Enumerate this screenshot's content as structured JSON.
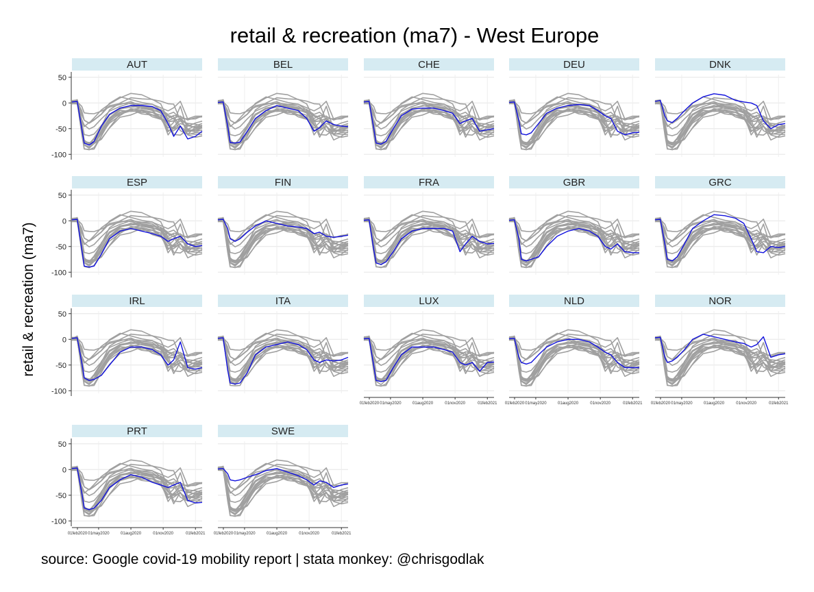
{
  "chart_data": {
    "type": "line",
    "title": "retail & recreation (ma7) - West Europe",
    "ylabel": "retail & recreation (ma7)",
    "xlabel": "",
    "source": "source: Google covid-19 mobility report | stata monkey: @chrisgodlak",
    "ylim": [
      -105,
      55
    ],
    "yticks": [
      50,
      0,
      -50,
      -100
    ],
    "x_range": [
      "2020-02-15",
      "2021-02-20"
    ],
    "x_ticks": [
      {
        "date": "2020-02-01",
        "label": "01feb2020"
      },
      {
        "date": "2020-05-01",
        "label": "01may2020"
      },
      {
        "date": "2020-08-01",
        "label": "01aug2020"
      },
      {
        "date": "2020-11-01",
        "label": "01nov2020"
      },
      {
        "date": "2021-02-01",
        "label": "01feb2021"
      }
    ],
    "background_series_color": "#a0a0a0",
    "highlight_color": "#1010dd",
    "grid": true,
    "x_dates": [
      "2020-02-15",
      "2020-03-01",
      "2020-03-14",
      "2020-03-21",
      "2020-04-04",
      "2020-04-18",
      "2020-05-09",
      "2020-06-01",
      "2020-07-01",
      "2020-08-01",
      "2020-09-01",
      "2020-10-01",
      "2020-10-25",
      "2020-11-15",
      "2020-12-01",
      "2020-12-20",
      "2021-01-10",
      "2021-02-01",
      "2021-02-20"
    ],
    "series": [
      {
        "name": "AUT",
        "values": [
          2,
          3,
          -50,
          -78,
          -82,
          -75,
          -45,
          -22,
          -10,
          -5,
          -5,
          -7,
          -15,
          -40,
          -65,
          -45,
          -70,
          -65,
          -55
        ]
      },
      {
        "name": "BEL",
        "values": [
          1,
          2,
          -45,
          -77,
          -78,
          -76,
          -55,
          -30,
          -15,
          -5,
          -10,
          -15,
          -30,
          -55,
          -48,
          -35,
          -42,
          -45,
          -46
        ]
      },
      {
        "name": "CHE",
        "values": [
          2,
          3,
          -48,
          -78,
          -80,
          -75,
          -50,
          -25,
          -12,
          -10,
          -10,
          -15,
          -20,
          -40,
          -35,
          -30,
          -55,
          -52,
          -50
        ]
      },
      {
        "name": "DEU",
        "values": [
          1,
          2,
          -35,
          -60,
          -62,
          -58,
          -40,
          -20,
          -10,
          -5,
          -3,
          -5,
          -15,
          -25,
          -30,
          -55,
          -62,
          -58,
          -57
        ]
      },
      {
        "name": "DNK",
        "values": [
          3,
          5,
          -25,
          -35,
          -38,
          -30,
          -15,
          0,
          12,
          18,
          15,
          5,
          2,
          0,
          -5,
          -35,
          -50,
          -42,
          -40
        ]
      },
      {
        "name": "ESP",
        "values": [
          2,
          3,
          -55,
          -88,
          -90,
          -88,
          -65,
          -35,
          -20,
          -15,
          -20,
          -25,
          -30,
          -40,
          -35,
          -30,
          -45,
          -50,
          -48
        ]
      },
      {
        "name": "FIN",
        "values": [
          2,
          3,
          -15,
          -35,
          -40,
          -35,
          -22,
          -10,
          0,
          -5,
          -10,
          -12,
          -15,
          -25,
          -22,
          -30,
          -32,
          -30,
          -28
        ]
      },
      {
        "name": "FRA",
        "values": [
          1,
          2,
          -55,
          -82,
          -85,
          -80,
          -60,
          -35,
          -20,
          -15,
          -15,
          -15,
          -20,
          -60,
          -45,
          -30,
          -40,
          -45,
          -44
        ]
      },
      {
        "name": "GBR",
        "values": [
          1,
          2,
          -35,
          -75,
          -78,
          -75,
          -70,
          -50,
          -30,
          -20,
          -15,
          -20,
          -30,
          -50,
          -55,
          -45,
          -60,
          -62,
          -62
        ]
      },
      {
        "name": "GRC",
        "values": [
          2,
          3,
          -45,
          -75,
          -78,
          -70,
          -45,
          -15,
          0,
          12,
          10,
          5,
          -5,
          -35,
          -60,
          -62,
          -50,
          -52,
          -50
        ]
      },
      {
        "name": "IRL",
        "values": [
          2,
          3,
          -45,
          -75,
          -80,
          -78,
          -70,
          -50,
          -25,
          -15,
          -15,
          -20,
          -30,
          -50,
          -40,
          -5,
          -55,
          -58,
          -55
        ]
      },
      {
        "name": "ITA",
        "values": [
          2,
          3,
          -60,
          -85,
          -87,
          -85,
          -65,
          -30,
          -15,
          -10,
          -5,
          -10,
          -20,
          -40,
          -45,
          -40,
          -42,
          -40,
          -35
        ]
      },
      {
        "name": "LUX",
        "values": [
          1,
          2,
          -50,
          -80,
          -82,
          -80,
          -55,
          -30,
          -15,
          -15,
          -15,
          -20,
          -25,
          -45,
          -50,
          -45,
          -62,
          -45,
          -44
        ]
      },
      {
        "name": "NLD",
        "values": [
          1,
          2,
          -35,
          -45,
          -48,
          -45,
          -30,
          -15,
          -5,
          0,
          0,
          -5,
          -15,
          -25,
          -30,
          -45,
          -55,
          -55,
          -55
        ]
      },
      {
        "name": "NOR",
        "values": [
          3,
          4,
          -35,
          -45,
          -42,
          -35,
          -20,
          0,
          10,
          5,
          0,
          -5,
          -8,
          -15,
          -10,
          5,
          -35,
          -30,
          -28
        ]
      },
      {
        "name": "PRT",
        "values": [
          2,
          3,
          -45,
          -75,
          -78,
          -75,
          -60,
          -35,
          -20,
          -10,
          -15,
          -25,
          -30,
          -35,
          -30,
          -25,
          -60,
          -65,
          -64
        ]
      },
      {
        "name": "SWE",
        "values": [
          1,
          2,
          -8,
          -20,
          -22,
          -20,
          -15,
          -10,
          -2,
          2,
          -5,
          -12,
          -20,
          -30,
          -22,
          -25,
          -35,
          -30,
          -28
        ]
      }
    ]
  }
}
